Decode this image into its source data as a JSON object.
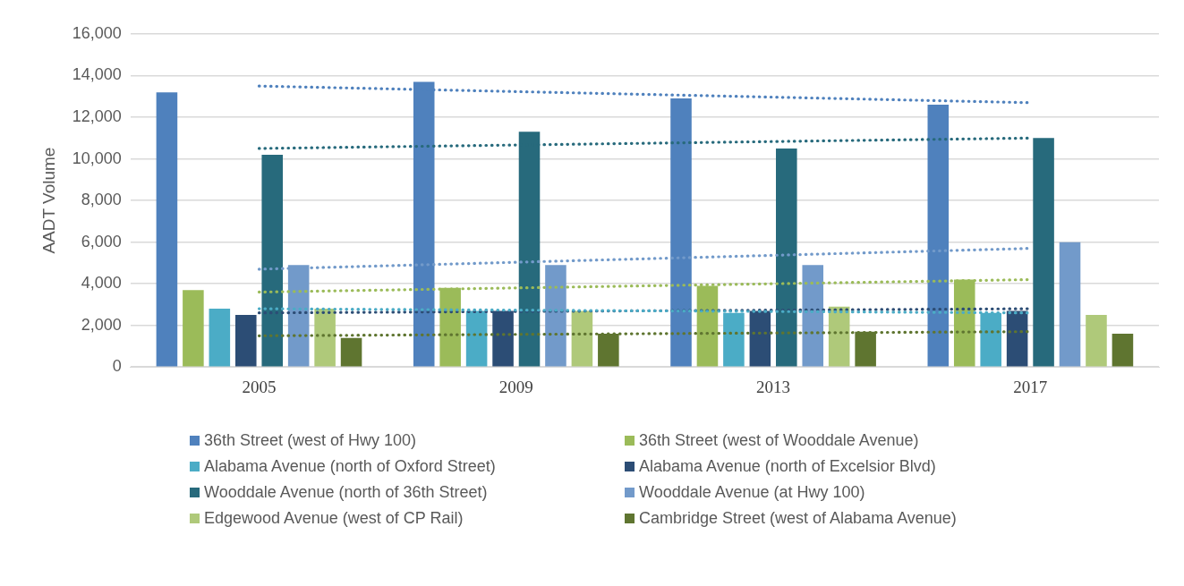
{
  "chart_data": {
    "type": "bar",
    "ylabel": "AADT Volume",
    "categories": [
      "2005",
      "2009",
      "2013",
      "2017"
    ],
    "ylim": [
      0,
      16000
    ],
    "yticks": [
      {
        "value": 0,
        "label": "0"
      },
      {
        "value": 2000,
        "label": "2,000"
      },
      {
        "value": 4000,
        "label": "4,000"
      },
      {
        "value": 6000,
        "label": "6,000"
      },
      {
        "value": 8000,
        "label": "8,000"
      },
      {
        "value": 10000,
        "label": "10,000"
      },
      {
        "value": 12000,
        "label": "12,000"
      },
      {
        "value": 14000,
        "label": "14,000"
      },
      {
        "value": 16000,
        "label": "16,000"
      }
    ],
    "grid": "y",
    "legend": "bottom",
    "series": [
      {
        "name": "36th Street (west of Hwy 100)",
        "color": "#4f81bd",
        "values": [
          13200,
          13700,
          12900,
          12600
        ]
      },
      {
        "name": "36th Street (west of Wooddale Avenue)",
        "color": "#9bbb59",
        "values": [
          3700,
          3800,
          3900,
          4200
        ]
      },
      {
        "name": "Alabama Avenue (north of Oxford Street)",
        "color": "#4bacc6",
        "values": [
          2800,
          2700,
          2600,
          2600
        ]
      },
      {
        "name": "Alabama Avenue (north of Excelsior Blvd)",
        "color": "#2c4d75",
        "values": [
          2500,
          2700,
          2700,
          2700
        ]
      },
      {
        "name": "Wooddale Avenue (north of 36th Street)",
        "color": "#276a7c",
        "values": [
          10200,
          11300,
          10500,
          11000
        ]
      },
      {
        "name": "Wooddale Avenue (at Hwy 100)",
        "color": "#729aca",
        "values": [
          4900,
          4900,
          4900,
          6000
        ]
      },
      {
        "name": "Edgewood Avenue (west of CP Rail)",
        "color": "#afc97a",
        "values": [
          2800,
          2700,
          2900,
          2500
        ]
      },
      {
        "name": "Cambridge Street (west of Alabama Avenue)",
        "color": "#5f7530",
        "values": [
          1400,
          1600,
          1700,
          1600
        ]
      },
      {
        "type": "line",
        "line_style": "dotted",
        "marker": "none",
        "color": "#4f81bd",
        "values": [
          13500,
          null,
          null,
          12700
        ]
      },
      {
        "type": "line",
        "line_style": "dotted",
        "marker": "none",
        "color": "#276a7c",
        "values": [
          10500,
          null,
          null,
          11000
        ]
      },
      {
        "type": "line",
        "line_style": "dotted",
        "marker": "none",
        "color": "#729aca",
        "values": [
          4700,
          null,
          null,
          5700
        ]
      },
      {
        "type": "line",
        "line_style": "dotted",
        "marker": "none",
        "color": "#9bbb59",
        "values": [
          3600,
          null,
          null,
          4200
        ]
      },
      {
        "type": "line",
        "line_style": "dotted",
        "marker": "none",
        "color": "#4bacc6",
        "values": [
          2800,
          null,
          null,
          2600
        ]
      },
      {
        "type": "line",
        "line_style": "dotted",
        "marker": "none",
        "color": "#2c4d75",
        "values": [
          2600,
          null,
          null,
          2800
        ]
      },
      {
        "type": "line",
        "line_style": "dotted",
        "marker": "none",
        "color": "#5f7530",
        "values": [
          1500,
          null,
          null,
          1700
        ]
      }
    ]
  }
}
